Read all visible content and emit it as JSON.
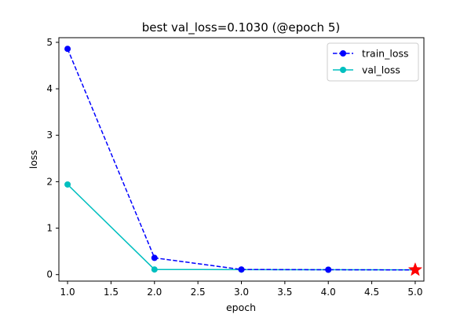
{
  "chart_data": {
    "type": "line",
    "title": "best val_loss=0.1030 (@epoch 5)",
    "xlabel": "epoch",
    "ylabel": "loss",
    "xlim": [
      0.9,
      5.1
    ],
    "ylim": [
      -0.14,
      5.1
    ],
    "xticks": [
      "1.0",
      "1.5",
      "2.0",
      "2.5",
      "3.0",
      "3.5",
      "4.0",
      "4.5",
      "5.0"
    ],
    "yticks": [
      "0",
      "1",
      "2",
      "3",
      "4",
      "5"
    ],
    "grid": false,
    "legend_position": "top-right",
    "x": [
      1,
      2,
      3,
      4,
      5
    ],
    "series": [
      {
        "name": "train_loss",
        "values": [
          4.86,
          0.36,
          0.11,
          0.105,
          0.1
        ],
        "color": "#0000ff",
        "linestyle": "dashed",
        "marker": "circle"
      },
      {
        "name": "val_loss",
        "values": [
          1.94,
          0.11,
          0.108,
          0.105,
          0.103
        ],
        "color": "#00bfbf",
        "linestyle": "solid",
        "marker": "circle"
      }
    ],
    "best_point": {
      "x": 5,
      "y": 0.103,
      "color": "#ff0000",
      "marker": "star"
    }
  }
}
